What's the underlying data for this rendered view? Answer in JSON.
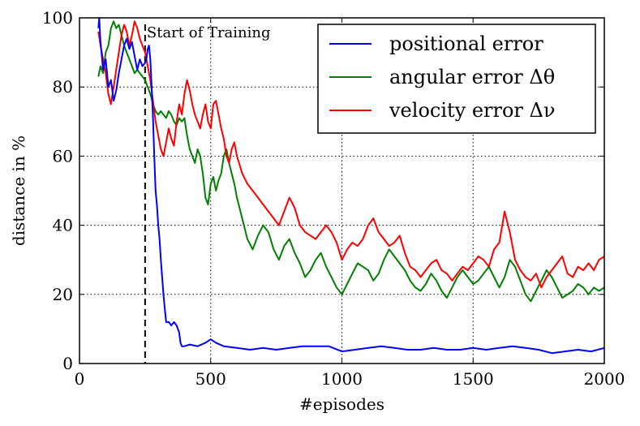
{
  "chart_data": {
    "type": "line",
    "title": "",
    "xlabel": "#episodes",
    "ylabel": "distance in %",
    "xlim": [
      0,
      2000
    ],
    "ylim": [
      0,
      100
    ],
    "xticks": [
      "0",
      "500",
      "1000",
      "1500",
      "2000"
    ],
    "yticks": [
      "0",
      "20",
      "40",
      "60",
      "80",
      "100"
    ],
    "grid": true,
    "legend_position": "top-right",
    "annotation": {
      "text": "Start of Training",
      "x": 250
    },
    "series": [
      {
        "name": "positional error",
        "color": "#0000ff",
        "x": [
          72,
          75,
          80,
          90,
          100,
          110,
          120,
          130,
          140,
          150,
          160,
          170,
          180,
          190,
          200,
          210,
          220,
          230,
          240,
          250,
          255,
          260,
          265,
          270,
          275,
          280,
          285,
          290,
          295,
          300,
          305,
          310,
          315,
          320,
          325,
          330,
          340,
          350,
          360,
          370,
          380,
          385,
          390,
          400,
          420,
          450,
          480,
          500,
          520,
          550,
          600,
          650,
          700,
          750,
          800,
          850,
          900,
          950,
          1000,
          1050,
          1100,
          1150,
          1200,
          1250,
          1300,
          1350,
          1400,
          1450,
          1500,
          1550,
          1600,
          1650,
          1700,
          1750,
          1800,
          1850,
          1900,
          1950,
          2000
        ],
        "y": [
          97,
          100,
          93,
          85,
          88,
          80,
          82,
          76,
          79,
          84,
          88,
          92,
          94,
          91,
          93,
          89,
          85,
          88,
          86,
          87,
          88,
          91,
          92,
          88,
          80,
          71,
          60,
          50,
          46,
          40,
          36,
          30,
          25,
          20,
          16,
          12,
          12,
          11,
          12,
          11,
          9,
          6,
          5,
          5,
          5.5,
          5,
          6,
          7,
          6,
          5,
          4.5,
          4,
          4.5,
          4,
          4.5,
          5,
          5,
          5,
          3.5,
          4,
          4.5,
          5,
          4.5,
          4,
          4,
          4.5,
          4,
          4,
          4.5,
          4,
          4.5,
          5,
          4.5,
          4,
          3,
          3.5,
          4,
          3.5,
          4.5
        ]
      },
      {
        "name": "angular error Δθ",
        "color": "#008000",
        "x": [
          72,
          80,
          90,
          100,
          110,
          120,
          130,
          140,
          150,
          160,
          170,
          180,
          190,
          200,
          210,
          220,
          230,
          240,
          250,
          260,
          270,
          280,
          290,
          300,
          310,
          320,
          330,
          340,
          350,
          360,
          370,
          380,
          390,
          400,
          410,
          420,
          430,
          440,
          450,
          460,
          470,
          480,
          490,
          500,
          510,
          520,
          530,
          540,
          550,
          560,
          570,
          580,
          590,
          600,
          620,
          640,
          660,
          680,
          700,
          720,
          740,
          760,
          780,
          800,
          820,
          840,
          860,
          880,
          900,
          920,
          940,
          960,
          980,
          1000,
          1020,
          1040,
          1060,
          1080,
          1100,
          1120,
          1140,
          1160,
          1180,
          1200,
          1220,
          1240,
          1260,
          1280,
          1300,
          1320,
          1340,
          1360,
          1380,
          1400,
          1420,
          1440,
          1460,
          1480,
          1500,
          1520,
          1540,
          1560,
          1580,
          1600,
          1620,
          1640,
          1660,
          1680,
          1700,
          1720,
          1740,
          1760,
          1780,
          1800,
          1820,
          1840,
          1860,
          1880,
          1900,
          1920,
          1940,
          1960,
          1980,
          2000
        ],
        "y": [
          83,
          86,
          84,
          90,
          92,
          97,
          99,
          97,
          98,
          95,
          92,
          90,
          88,
          86,
          84,
          85,
          84,
          83,
          82,
          80,
          78,
          75,
          73,
          72,
          73,
          72,
          71,
          73,
          72,
          70,
          69,
          71,
          70,
          71,
          66,
          62,
          60,
          58,
          62,
          60,
          55,
          48,
          46,
          52,
          54,
          50,
          53,
          55,
          60,
          62,
          58,
          55,
          52,
          48,
          42,
          36,
          33,
          37,
          40,
          38,
          33,
          30,
          34,
          36,
          32,
          29,
          25,
          27,
          30,
          32,
          28,
          25,
          22,
          20,
          23,
          26,
          29,
          28,
          27,
          24,
          26,
          30,
          33,
          31,
          29,
          27,
          24,
          22,
          21,
          23,
          26,
          24,
          21,
          19,
          22,
          25,
          27,
          25,
          23,
          24,
          26,
          28,
          25,
          22,
          25,
          30,
          28,
          24,
          20,
          18,
          21,
          24,
          27,
          25,
          22,
          19,
          20,
          21,
          23,
          22,
          20,
          22,
          21,
          22
        ]
      },
      {
        "name": "velocity error Δν",
        "color": "#ff0000",
        "x": [
          72,
          80,
          90,
          100,
          110,
          120,
          130,
          140,
          150,
          160,
          170,
          180,
          190,
          200,
          210,
          220,
          230,
          240,
          250,
          260,
          270,
          280,
          290,
          300,
          310,
          320,
          330,
          340,
          350,
          360,
          370,
          380,
          390,
          400,
          410,
          420,
          430,
          440,
          450,
          460,
          470,
          480,
          490,
          500,
          510,
          520,
          530,
          540,
          550,
          560,
          570,
          580,
          590,
          600,
          620,
          640,
          660,
          680,
          700,
          720,
          740,
          760,
          780,
          800,
          820,
          840,
          860,
          880,
          900,
          920,
          940,
          960,
          980,
          1000,
          1020,
          1040,
          1060,
          1080,
          1100,
          1120,
          1140,
          1160,
          1180,
          1200,
          1220,
          1240,
          1260,
          1280,
          1300,
          1320,
          1340,
          1360,
          1380,
          1400,
          1420,
          1440,
          1460,
          1480,
          1500,
          1520,
          1540,
          1560,
          1580,
          1600,
          1620,
          1640,
          1660,
          1680,
          1700,
          1720,
          1740,
          1760,
          1780,
          1800,
          1820,
          1840,
          1860,
          1880,
          1900,
          1920,
          1940,
          1960,
          1980,
          2000
        ],
        "y": [
          96,
          92,
          88,
          84,
          78,
          75,
          80,
          85,
          90,
          95,
          98,
          96,
          92,
          95,
          99,
          97,
          94,
          92,
          90,
          86,
          82,
          76,
          70,
          66,
          62,
          60,
          64,
          68,
          65,
          63,
          70,
          75,
          72,
          78,
          82,
          79,
          75,
          72,
          70,
          68,
          72,
          75,
          70,
          68,
          75,
          76,
          72,
          68,
          65,
          60,
          58,
          62,
          64,
          60,
          55,
          52,
          50,
          48,
          46,
          44,
          42,
          40,
          44,
          48,
          45,
          40,
          38,
          37,
          36,
          38,
          40,
          38,
          35,
          30,
          33,
          35,
          34,
          36,
          40,
          42,
          38,
          36,
          34,
          35,
          37,
          32,
          28,
          27,
          25,
          27,
          29,
          30,
          27,
          26,
          24,
          26,
          28,
          27,
          29,
          31,
          30,
          28,
          33,
          35,
          44,
          38,
          30,
          27,
          25,
          24,
          26,
          22,
          25,
          27,
          29,
          31,
          26,
          25,
          28,
          27,
          29,
          27,
          30,
          31
        ]
      }
    ]
  }
}
